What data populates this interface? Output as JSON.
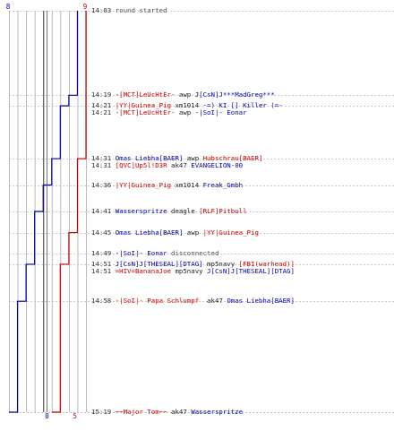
{
  "scores": {
    "top_left": "8",
    "top_right": "9",
    "bottom_left": "0",
    "bottom_right": "5"
  },
  "colors": {
    "team_a": "#0000aa",
    "team_b": "#cc0000",
    "grid": "#aaaaaa",
    "dashed": "#bbbbbb"
  },
  "chart_data": {
    "type": "line",
    "title": "",
    "xlabel": "",
    "ylabel": "",
    "time_range": [
      "14:03",
      "15:19"
    ],
    "series": [
      {
        "name": "",
        "color": "#0000aa",
        "points": [
          {
            "t": "14:03",
            "v": 8
          },
          {
            "t": "14:19",
            "v": 7
          },
          {
            "t": "14:21",
            "v": 6
          },
          {
            "t": "14:31",
            "v": 5
          },
          {
            "t": "14:36",
            "v": 4
          },
          {
            "t": "14:41",
            "v": 3
          },
          {
            "t": "14:51",
            "v": 2
          },
          {
            "t": "14:58",
            "v": 1
          },
          {
            "t": "15:19",
            "v": 0
          }
        ]
      },
      {
        "name": "",
        "color": "#cc0000",
        "points": [
          {
            "t": "14:03",
            "v": 9
          },
          {
            "t": "14:31",
            "v": 8
          },
          {
            "t": "14:45",
            "v": 7
          },
          {
            "t": "14:51",
            "v": 6
          },
          {
            "t": "15:19",
            "v": 5
          }
        ]
      }
    ]
  },
  "events": [
    {
      "time": "14:03",
      "parts": [
        {
          "text": "round started",
          "color": "gray"
        }
      ]
    },
    {
      "time": "14:19",
      "parts": [
        {
          "text": "-[MCT]LeUcHtEr-",
          "color": "red"
        },
        {
          "text": " awp ",
          "color": "black"
        },
        {
          "text": "J[CsN]J***MadGreg***",
          "color": "blue"
        }
      ]
    },
    {
      "time": "14:21",
      "parts": [
        {
          "text": "|YY|Guinea_Pig",
          "color": "red"
        },
        {
          "text": " xm1014 ",
          "color": "black"
        },
        {
          "text": "-=) KI [] Killer (=-",
          "color": "blue"
        }
      ]
    },
    {
      "time": "14:21",
      "parts": [
        {
          "text": "-[MCT]LeUcHtEr-",
          "color": "red"
        },
        {
          "text": " awp ",
          "color": "black"
        },
        {
          "text": "-|SoI|- Eonar",
          "color": "blue"
        }
      ]
    },
    {
      "time": "14:31",
      "parts": [
        {
          "text": "Omas Liebha[BAER]",
          "color": "blue"
        },
        {
          "text": " awp ",
          "color": "black"
        },
        {
          "text": "Hubschrau[BAER]",
          "color": "red"
        }
      ]
    },
    {
      "time": "14:31",
      "parts": [
        {
          "text": "[QVC]Up5l!D3R",
          "color": "red"
        },
        {
          "text": " ak47 ",
          "color": "black"
        },
        {
          "text": "EVANGELION-00",
          "color": "blue"
        }
      ]
    },
    {
      "time": "14:36",
      "parts": [
        {
          "text": "|YY|Guinea_Pig",
          "color": "red"
        },
        {
          "text": " xm1014 ",
          "color": "black"
        },
        {
          "text": "Freak_Gmbh",
          "color": "blue"
        }
      ]
    },
    {
      "time": "14:41",
      "parts": [
        {
          "text": "Wasserspritze",
          "color": "blue"
        },
        {
          "text": " deagle ",
          "color": "black"
        },
        {
          "text": "[RLF]Pitbull",
          "color": "red"
        }
      ]
    },
    {
      "time": "14:45",
      "parts": [
        {
          "text": "Omas Liebha[BAER]",
          "color": "blue"
        },
        {
          "text": " awp ",
          "color": "black"
        },
        {
          "text": "|YY|Guinea_Pig",
          "color": "red"
        }
      ]
    },
    {
      "time": "14:49",
      "parts": [
        {
          "text": "-|SoI|- Eonar",
          "color": "blue"
        },
        {
          "text": " disconnected",
          "color": "gray"
        }
      ]
    },
    {
      "time": "14:51",
      "parts": [
        {
          "text": "J[CsN]J[THESEAL][DTAG]",
          "color": "blue"
        },
        {
          "text": " mp5navy ",
          "color": "black"
        },
        {
          "text": "[FBI(warhead)]",
          "color": "red"
        }
      ]
    },
    {
      "time": "14:51",
      "parts": [
        {
          "text": "=HIV=BananaJoe",
          "color": "red"
        },
        {
          "text": " mp5navy ",
          "color": "black"
        },
        {
          "text": "J[CsN]J[THESEAL][DTAG]",
          "color": "blue"
        }
      ]
    },
    {
      "time": "14:58",
      "parts": [
        {
          "text": "-|SoI|- Papa Schlumpf",
          "color": "red"
        },
        {
          "text": "  ak47 ",
          "color": "black"
        },
        {
          "text": "Omas Liebha[BAER]",
          "color": "blue"
        }
      ]
    },
    {
      "time": "15:19",
      "parts": [
        {
          "text": "~~Major Tom~~",
          "color": "red"
        },
        {
          "text": " ak47 ",
          "color": "black"
        },
        {
          "text": "Wasserspritze",
          "color": "blue"
        }
      ]
    }
  ]
}
